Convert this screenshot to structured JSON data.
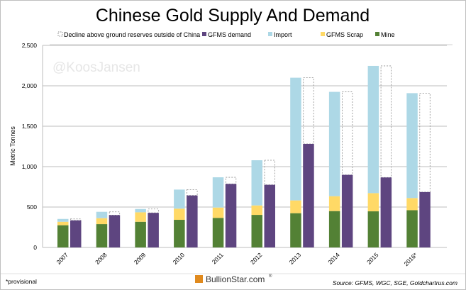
{
  "chart_data": {
    "type": "bar",
    "title": "Chinese Gold Supply And Demand",
    "ylabel": "Metric Tonnes",
    "xlabel": "",
    "ylim": [
      0,
      2500
    ],
    "yticks": [
      "0",
      "500",
      "1,000",
      "1,500",
      "2,000",
      "2,500"
    ],
    "ytick_values": [
      0,
      500,
      1000,
      1500,
      2000,
      2500
    ],
    "grid": true,
    "legend_position": "top",
    "categories": [
      "2007",
      "2008",
      "2009",
      "2010",
      "2011",
      "2012",
      "2013",
      "2014",
      "2015",
      "2016*"
    ],
    "stacked_supply": [
      {
        "name": "Mine",
        "color": "#538135",
        "values": [
          275,
          289,
          318,
          342,
          366,
          403,
          424,
          450,
          447,
          461
        ]
      },
      {
        "name": "GFMS Scrap",
        "color": "#ffd966",
        "values": [
          43,
          73,
          117,
          138,
          128,
          117,
          158,
          184,
          225,
          150
        ]
      },
      {
        "name": "Import",
        "color": "#add8e6",
        "values": [
          35,
          79,
          41,
          236,
          374,
          559,
          1518,
          1291,
          1574,
          1298
        ]
      }
    ],
    "demand": {
      "name": "GFMS demand",
      "color": "#5e4580",
      "values": [
        335,
        400,
        428,
        643,
        786,
        775,
        1281,
        898,
        866,
        685
      ]
    },
    "decline": {
      "name": "Decline above ground reserves outside of China",
      "values": [
        18,
        41,
        48,
        73,
        82,
        304,
        819,
        1027,
        1380,
        1224
      ]
    },
    "legend": [
      {
        "label": "Decline above ground reserves outside of China",
        "swatch": "dashed"
      },
      {
        "label": "GFMS demand",
        "color": "#5e4580"
      },
      {
        "label": "Import",
        "color": "#add8e6"
      },
      {
        "label": "GFMS Scrap",
        "color": "#ffd966"
      },
      {
        "label": "Mine",
        "color": "#538135"
      }
    ]
  },
  "watermark": "@KoosJansen",
  "footer": {
    "note": "*provisional",
    "brand": "BullionStar.com",
    "brand_mark": "®",
    "source": "Source: GFMS, WGC, SGE, Goldchartrus.com"
  }
}
